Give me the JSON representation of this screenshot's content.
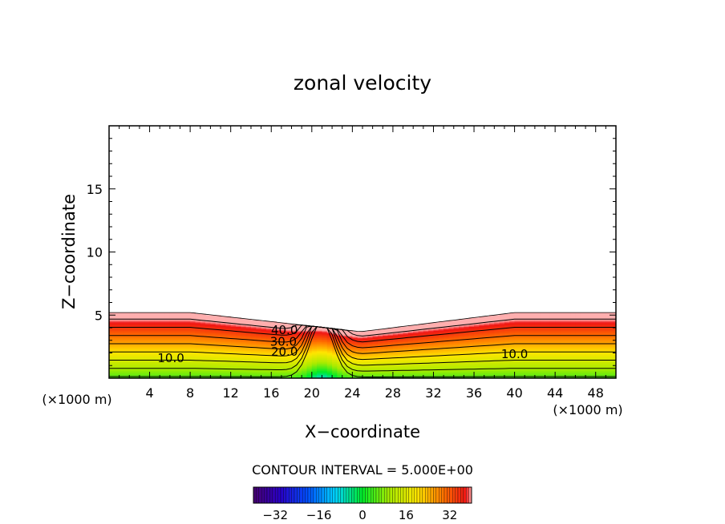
{
  "chart_data": {
    "type": "heatmap",
    "title": "zonal velocity",
    "xlabel": "X−coordinate",
    "ylabel": "Z−coordinate",
    "x_unit_left": "(×1000 m)",
    "x_unit_right": "(×1000 m)",
    "xlim": [
      0,
      50
    ],
    "ylim": [
      0,
      20
    ],
    "x_ticks": [
      4,
      8,
      12,
      16,
      20,
      24,
      28,
      32,
      36,
      40,
      44,
      48
    ],
    "y_ticks": [
      5,
      10,
      15
    ],
    "contour_interval_label": "CONTOUR INTERVAL = 5.000E+00",
    "contour_labels": [
      {
        "text": "40.0",
        "x": 17.3,
        "y": 3.8
      },
      {
        "text": "30.0",
        "x": 17.2,
        "y": 2.9
      },
      {
        "text": "20.0",
        "x": 17.3,
        "y": 2.1
      },
      {
        "text": "10.0",
        "x": 6.1,
        "y": 1.6
      },
      {
        "text": "10.0",
        "x": 40.0,
        "y": 1.9
      }
    ],
    "colorbar": {
      "min": -40,
      "max": 40,
      "tick_values": [
        -32,
        -16,
        0,
        16,
        32
      ],
      "tick_labels": [
        "−32",
        "−16",
        "0",
        "16",
        "32"
      ]
    },
    "legend": "none",
    "grid": false
  }
}
